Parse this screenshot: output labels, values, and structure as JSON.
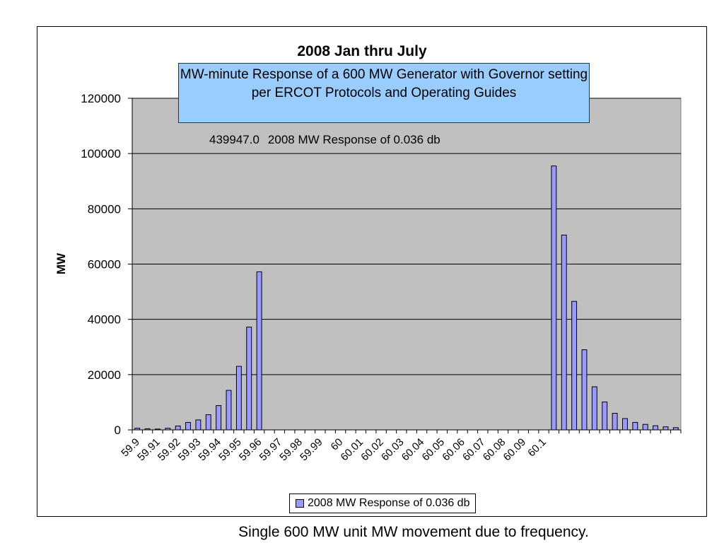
{
  "chart_data": {
    "type": "bar",
    "title": "2008 Jan thru July",
    "subtitle": "MW-minute Response of a 600 MW Generator with Governor setting per ERCOT Protocols and Operating Guides",
    "annotation_value": "439947.0",
    "annotation_label": "2008 MW Response of 0.036 db",
    "ylabel": "MW",
    "xlabel": "",
    "ylim": [
      0,
      120000
    ],
    "yticks": [
      0,
      20000,
      40000,
      60000,
      80000,
      100000,
      120000
    ],
    "x_tick_labels": [
      "59.9",
      "59.91",
      "59.92",
      "59.93",
      "59.94",
      "59.95",
      "59.96",
      "59.97",
      "59.98",
      "59.99",
      "60",
      "60.01",
      "60.02",
      "60.03",
      "60.04",
      "60.05",
      "60.06",
      "60.07",
      "60.08",
      "60.09",
      "60.1"
    ],
    "grid": "horizontal",
    "legend_position": "bottom",
    "series": [
      {
        "name": "2008 MW Response of 0.036 db",
        "color": "#9999ff",
        "values": [
          600,
          400,
          300,
          600,
          1400,
          2700,
          3600,
          5500,
          8800,
          14300,
          23000,
          37200,
          57200,
          0,
          0,
          0,
          0,
          0,
          0,
          0,
          0,
          0,
          0,
          0,
          0,
          0,
          0,
          0,
          0,
          0,
          0,
          0,
          0,
          0,
          0,
          0,
          0,
          0,
          0,
          0,
          0,
          95500,
          70500,
          46500,
          29000,
          15600,
          10100,
          6000,
          4100,
          2700,
          2000,
          1500,
          1100,
          800
        ]
      }
    ]
  },
  "caption": "Single 600 MW unit MW movement due to frequency."
}
